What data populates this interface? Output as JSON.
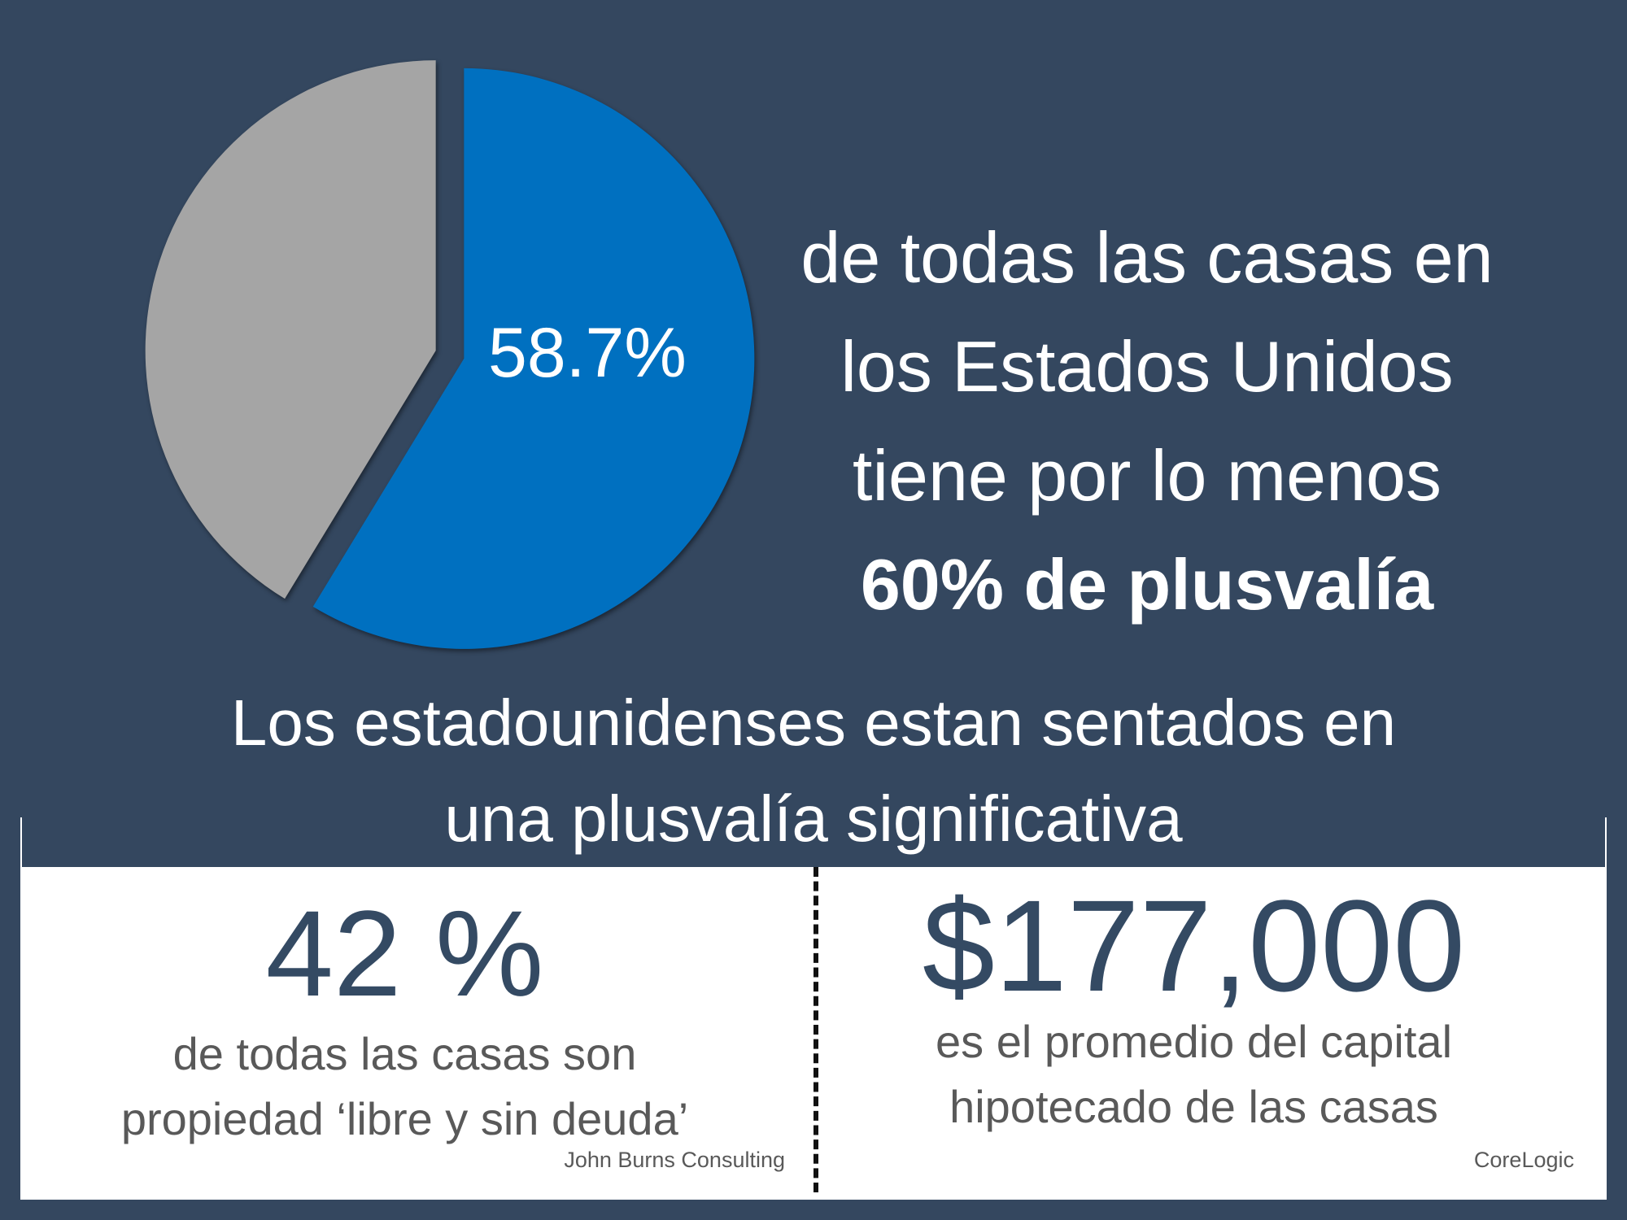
{
  "chart_data": {
    "type": "pie",
    "title": "",
    "slices": [
      {
        "label": "58.7%",
        "value": 58.7,
        "color": "#0070c0"
      },
      {
        "label": "",
        "value": 41.3,
        "color": "#a5a5a5"
      }
    ],
    "data_label": "58.7%"
  },
  "headline": {
    "line1": "de todas las casas en",
    "line2": "los Estados Unidos",
    "line3": "tiene por lo menos",
    "line4": "60% de plusvalía"
  },
  "subtitle": {
    "line1": "Los estadounidenses estan sentados en",
    "line2": "una plusvalía significativa"
  },
  "stats": [
    {
      "value": "42 %",
      "line1": "de todas las casas son",
      "line2": "propiedad ‘libre y sin deuda’",
      "source": "John Burns Consulting"
    },
    {
      "value": "$177,000",
      "line1": "es el promedio del capital",
      "line2": "hipotecado de las casas",
      "source": "CoreLogic"
    }
  ],
  "colors": {
    "background": "#34475f",
    "accent": "#0070c0",
    "stat": "#344a63"
  }
}
